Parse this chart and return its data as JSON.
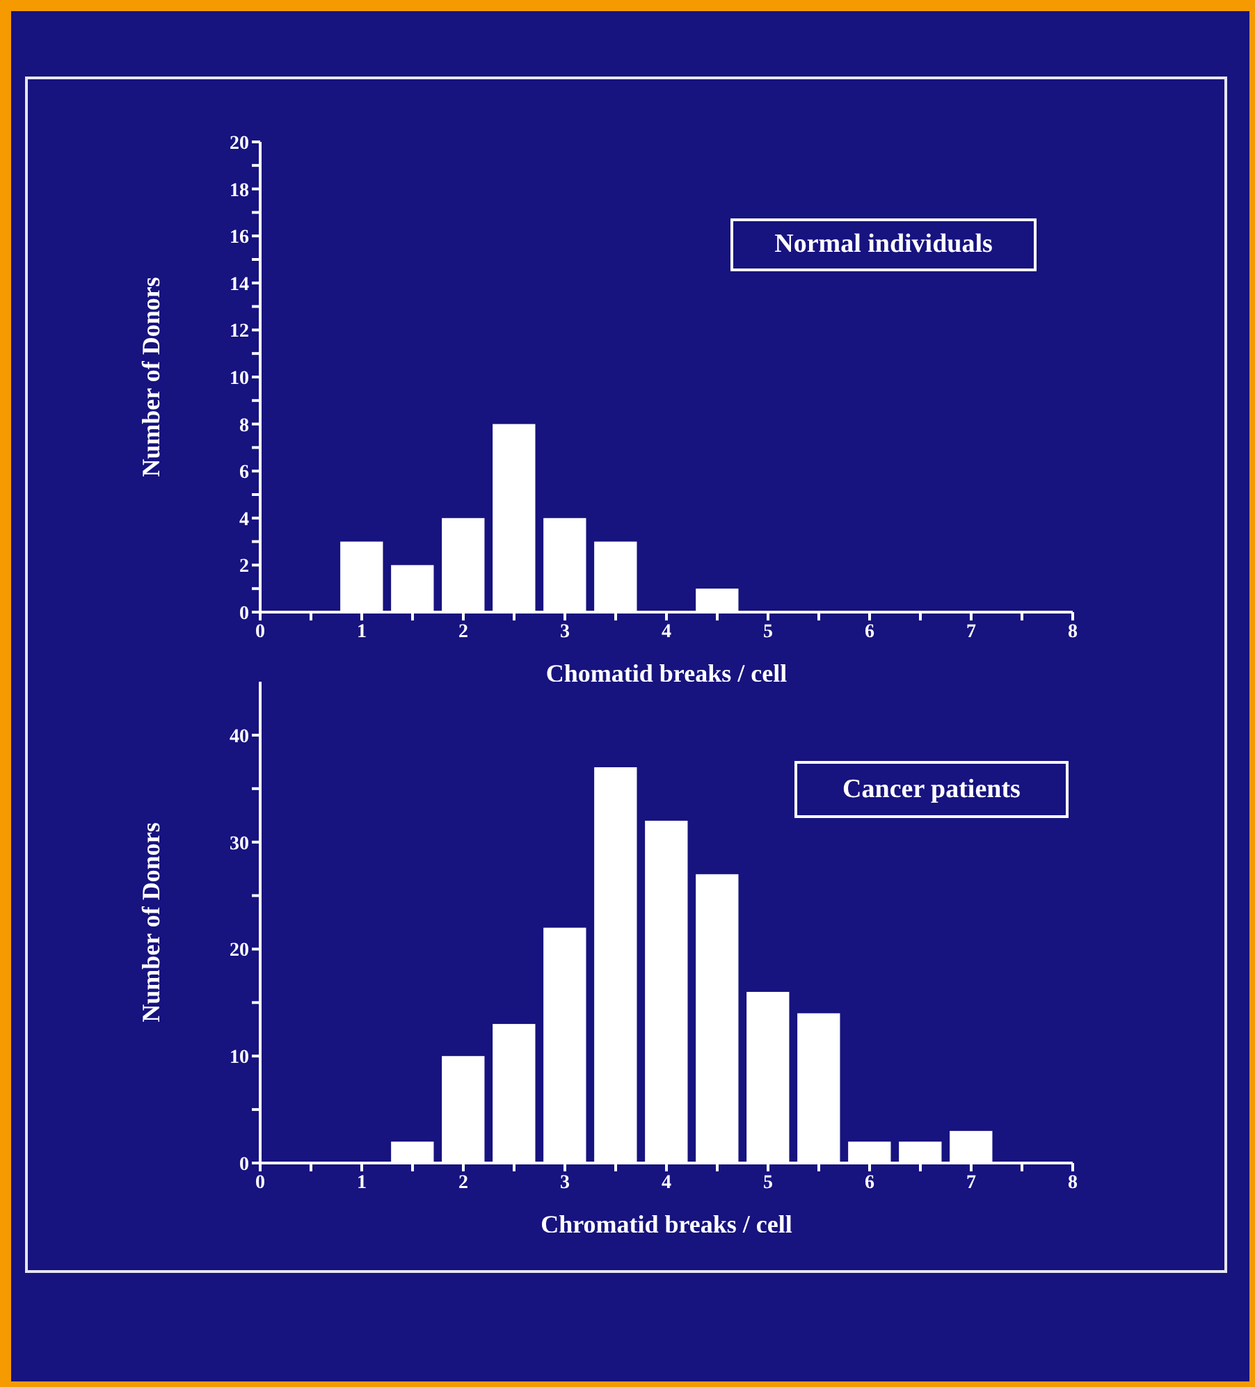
{
  "chart_data": [
    {
      "type": "histogram",
      "xlabel": "Chomatid breaks / cell",
      "ylabel": "Number of Donors",
      "annotations": [
        "Normal individuals"
      ],
      "bins": [
        0.75,
        1.25,
        1.75,
        2.25,
        2.75,
        3.25,
        3.75,
        4.25,
        4.75
      ],
      "values": [
        3,
        2,
        4,
        8,
        4,
        3,
        0,
        1
      ],
      "color": "#ffffff",
      "xlim": [
        0,
        8
      ],
      "xticks": [
        0,
        {
          "value": 0.5,
          "label": null
        },
        1,
        {
          "value": 1.5,
          "label": null
        },
        2,
        {
          "value": 2.5,
          "label": null
        },
        3,
        {
          "value": 3.5,
          "label": null
        },
        4,
        {
          "value": 4.5,
          "label": null
        },
        5,
        {
          "value": 5.5,
          "label": null
        },
        6,
        {
          "value": 6.5,
          "label": null
        },
        7,
        {
          "value": 7.5,
          "label": null
        },
        8
      ],
      "ylim": [
        0,
        20
      ],
      "yticks": [
        0,
        {
          "value": 1,
          "label": null
        },
        2,
        {
          "value": 3,
          "label": null
        },
        4,
        {
          "value": 5,
          "label": null
        },
        6,
        {
          "value": 7,
          "label": null
        },
        8,
        {
          "value": 9,
          "label": null
        },
        10,
        {
          "value": 11,
          "label": null
        },
        12,
        {
          "value": 13,
          "label": null
        },
        14,
        {
          "value": 15,
          "label": null
        },
        16,
        {
          "value": 17,
          "label": null
        },
        18,
        {
          "value": 19,
          "label": null
        },
        20
      ]
    },
    {
      "type": "histogram",
      "xlabel": "Chromatid breaks / cell",
      "ylabel": "Number of Donors",
      "annotations": [
        "Cancer patients"
      ],
      "bins": [
        1.25,
        1.75,
        2.25,
        2.75,
        3.25,
        3.75,
        4.25,
        4.75,
        5.25,
        5.75,
        6.25,
        6.75,
        7.25
      ],
      "values": [
        2,
        10,
        13,
        22,
        37,
        32,
        27,
        16,
        14,
        2,
        2,
        3
      ],
      "color": "#ffffff",
      "xlim": [
        0,
        8
      ],
      "xticks": [
        0,
        {
          "value": 0.5,
          "label": null
        },
        1,
        {
          "value": 1.5,
          "label": null
        },
        2,
        {
          "value": 2.5,
          "label": null
        },
        3,
        {
          "value": 3.5,
          "label": null
        },
        4,
        {
          "value": 4.5,
          "label": null
        },
        5,
        {
          "value": 5.5,
          "label": null
        },
        6,
        {
          "value": 6.5,
          "label": null
        },
        7,
        {
          "value": 7.5,
          "label": null
        },
        8
      ],
      "ylim": [
        0,
        45
      ],
      "yticks": [
        0,
        {
          "value": 5,
          "label": null
        },
        10,
        {
          "value": 15,
          "label": null
        },
        20,
        {
          "value": 25,
          "label": null
        },
        30,
        {
          "value": 35,
          "label": null
        },
        40
      ]
    }
  ]
}
